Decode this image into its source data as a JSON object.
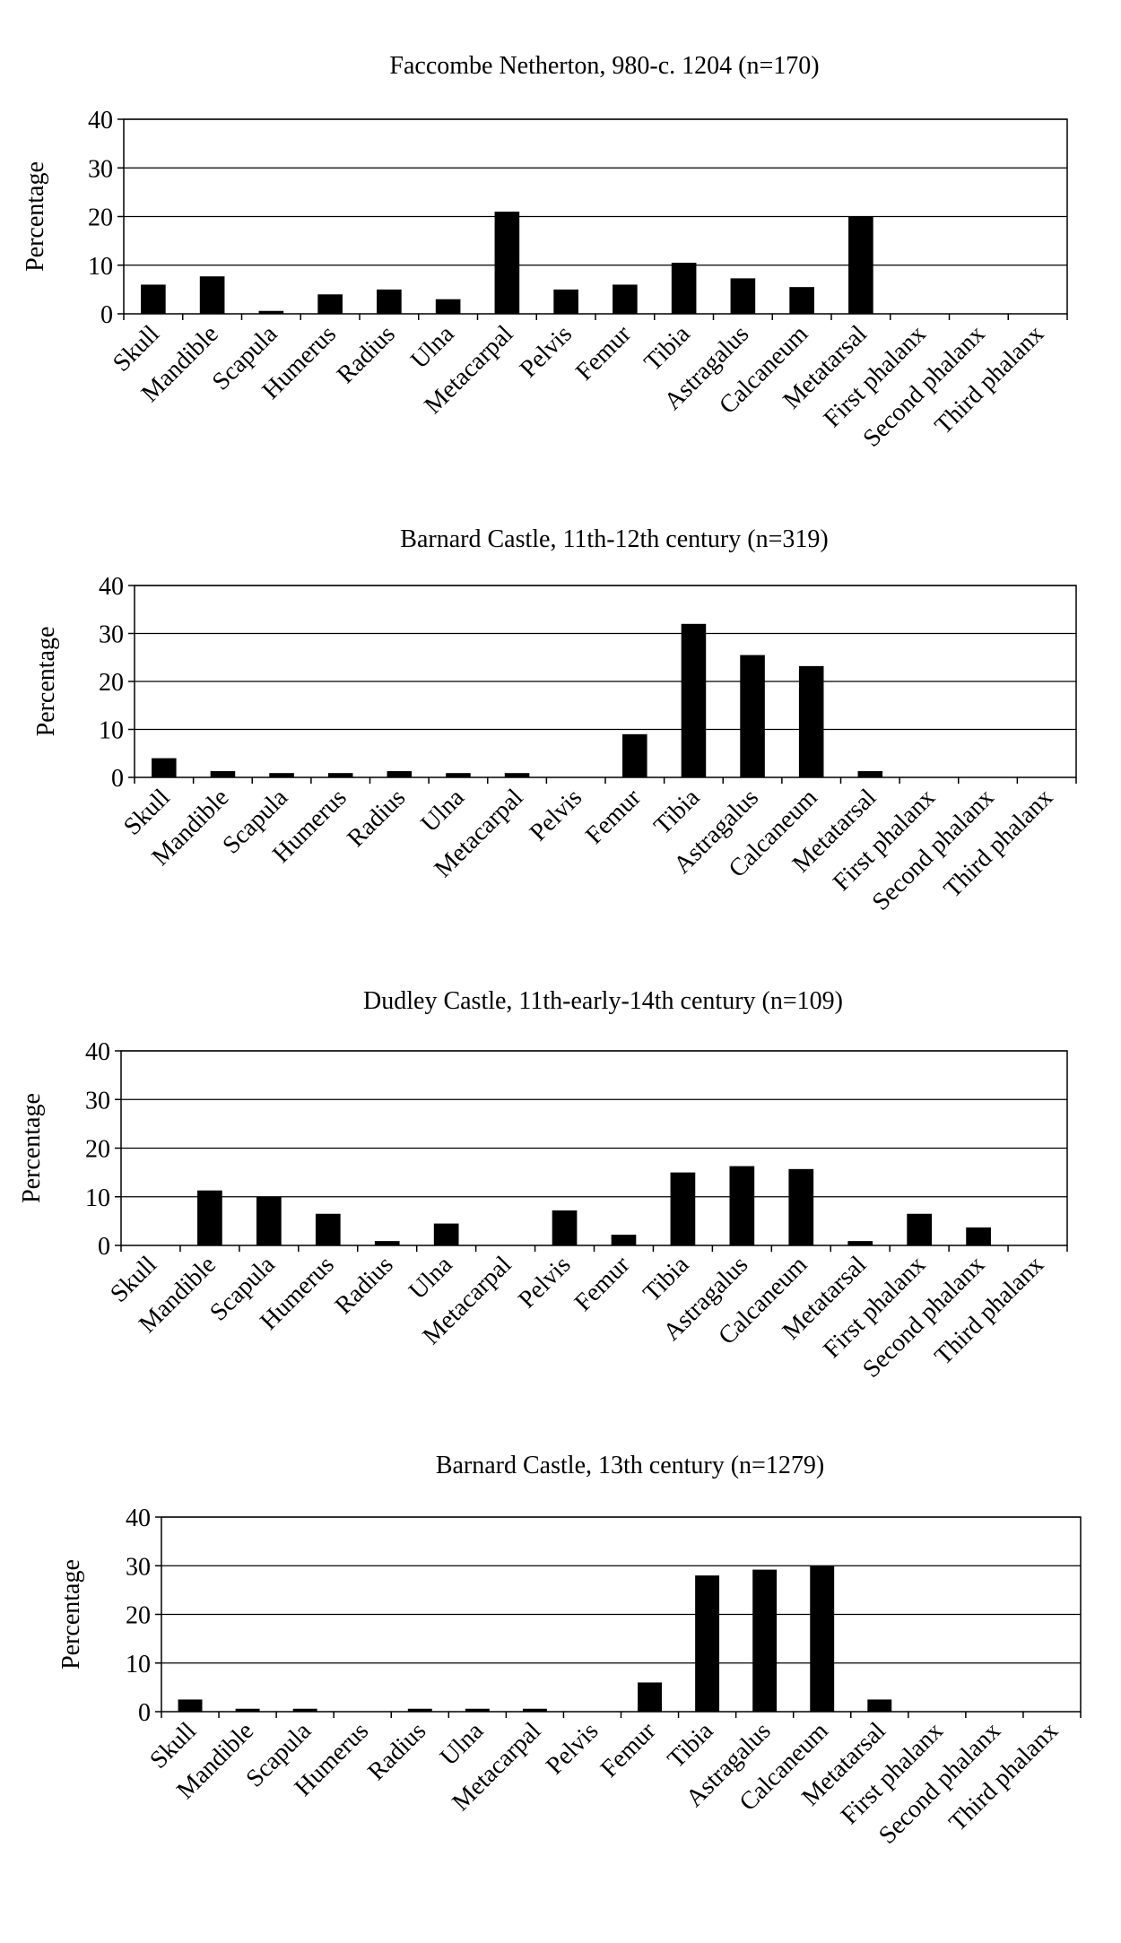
{
  "colors": {
    "bar": "#000000",
    "grid": "#000000",
    "axis": "#000000",
    "background": "#ffffff"
  },
  "chart_data": [
    {
      "type": "bar",
      "title": "Faccombe Netherton, 980-c. 1204 (n=170)",
      "ylabel": "Percentage",
      "ylim": [
        0,
        40
      ],
      "yticks": [
        0,
        10,
        20,
        30,
        40
      ],
      "grid": true,
      "categories": [
        "Skull",
        "Mandible",
        "Scapula",
        "Humerus",
        "Radius",
        "Ulna",
        "Metacarpal",
        "Pelvis",
        "Femur",
        "Tibia",
        "Astragalus",
        "Calcaneum",
        "Metatarsal",
        "First phalanx",
        "Second phalanx",
        "Third phalanx"
      ],
      "values": [
        6,
        7.7,
        0.6,
        4,
        5,
        3,
        21,
        5,
        6,
        10.5,
        7.3,
        5.5,
        20,
        0,
        0,
        0
      ]
    },
    {
      "type": "bar",
      "title": "Barnard Castle, 11th-12th century (n=319)",
      "ylabel": "Percentage",
      "ylim": [
        0,
        40
      ],
      "yticks": [
        0,
        10,
        20,
        30,
        40
      ],
      "grid": true,
      "categories": [
        "Skull",
        "Mandible",
        "Scapula",
        "Humerus",
        "Radius",
        "Ulna",
        "Metacarpal",
        "Pelvis",
        "Femur",
        "Tibia",
        "Astragalus",
        "Calcaneum",
        "Metatarsal",
        "First phalanx",
        "Second phalanx",
        "Third phalanx"
      ],
      "values": [
        4,
        1.3,
        0.9,
        0.9,
        1.3,
        0.9,
        0.9,
        0,
        9,
        32,
        25.5,
        23.2,
        1.3,
        0,
        0,
        0
      ]
    },
    {
      "type": "bar",
      "title": "Dudley Castle, 11th-early-14th century (n=109)",
      "ylabel": "Percentage",
      "ylim": [
        0,
        40
      ],
      "yticks": [
        0,
        10,
        20,
        30,
        40
      ],
      "grid": true,
      "categories": [
        "Skull",
        "Mandible",
        "Scapula",
        "Humerus",
        "Radius",
        "Ulna",
        "Metacarpal",
        "Pelvis",
        "Femur",
        "Tibia",
        "Astragalus",
        "Calcaneum",
        "Metatarsal",
        "First phalanx",
        "Second phalanx",
        "Third phalanx"
      ],
      "values": [
        0,
        11.3,
        10,
        6.5,
        0.9,
        4.5,
        0,
        7.2,
        2.2,
        15,
        16.3,
        15.7,
        0.9,
        6.5,
        3.7,
        0
      ]
    },
    {
      "type": "bar",
      "title": "Barnard Castle, 13th century (n=1279)",
      "ylabel": "Percentage",
      "ylim": [
        0,
        40
      ],
      "yticks": [
        0,
        10,
        20,
        30,
        40
      ],
      "grid": true,
      "categories": [
        "Skull",
        "Mandible",
        "Scapula",
        "Humerus",
        "Radius",
        "Ulna",
        "Metacarpal",
        "Pelvis",
        "Femur",
        "Tibia",
        "Astragalus",
        "Calcaneum",
        "Metatarsal",
        "First phalanx",
        "Second phalanx",
        "Third phalanx"
      ],
      "values": [
        2.5,
        0.6,
        0.6,
        0,
        0.6,
        0.6,
        0.6,
        0,
        6,
        28,
        29.2,
        30,
        2.5,
        0,
        0,
        0
      ]
    }
  ]
}
